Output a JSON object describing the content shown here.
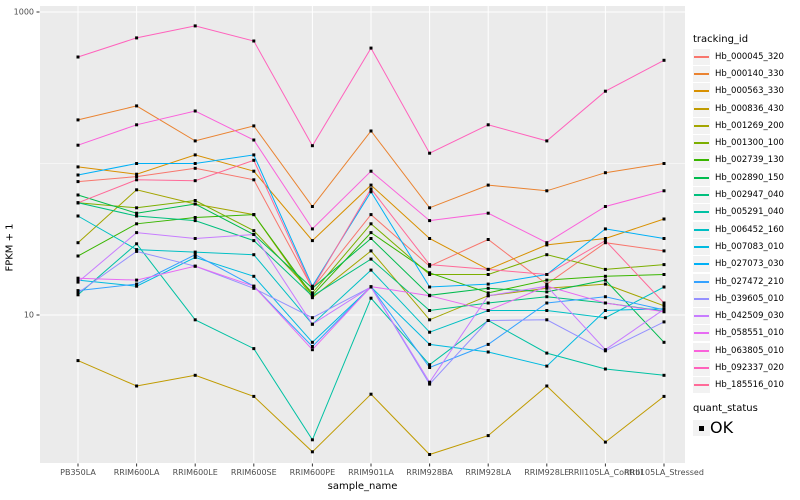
{
  "chart_data": {
    "type": "line",
    "title": "",
    "xlabel": "sample_name",
    "ylabel": "FPKM + 1",
    "y_scale": "log10",
    "ylim": [
      1,
      1000
    ],
    "y_tick_labels": [
      "1000",
      "10"
    ],
    "y_tick_values": [
      1000,
      10
    ],
    "y_minor_gridlines": [
      100
    ],
    "grid": true,
    "panel_bg": "#EBEBEB",
    "grid_color": "#FFFFFF",
    "tick_label_color": "#4D4D4D",
    "point_color": "#000000",
    "legend_position": "right",
    "x_categories": [
      "PB350LA",
      "RRIM600LA",
      "RRIM600LE",
      "RRIM600SE",
      "RRIM600PE",
      "RRIM901LA",
      "RRIM928BA",
      "RRIM928LA",
      "RRIM928LE",
      "RRII105LA_Control",
      "RRII105LA_Stressed"
    ],
    "series": [
      {
        "name": "Hb_000045_320",
        "color": "#F8766D",
        "values": [
          76,
          82,
          93,
          78,
          15,
          46,
          21,
          31.5,
          16,
          30,
          26.5
        ]
      },
      {
        "name": "Hb_000140_330",
        "color": "#EA8331",
        "values": [
          194,
          240,
          141,
          177,
          52,
          164,
          51,
          72,
          66,
          87,
          100
        ]
      },
      {
        "name": "Hb_000563_330",
        "color": "#D89000",
        "values": [
          95,
          85,
          114,
          89,
          31,
          72,
          32,
          20,
          29,
          32,
          43
        ]
      },
      {
        "name": "Hb_000836_430",
        "color": "#C09B00",
        "values": [
          5.0,
          3.4,
          4.0,
          2.9,
          1.25,
          3.0,
          1.2,
          1.6,
          3.4,
          1.45,
          2.9
        ]
      },
      {
        "name": "Hb_001269_200",
        "color": "#A3A500",
        "values": [
          30,
          67,
          54,
          46,
          13,
          26.5,
          9.3,
          13.4,
          15,
          16,
          11.5
        ]
      },
      {
        "name": "Hb_001300_100",
        "color": "#7CAE00",
        "values": [
          55,
          51,
          57,
          36,
          14,
          40,
          18.5,
          18.5,
          25,
          20,
          21.5
        ]
      },
      {
        "name": "Hb_002739_130",
        "color": "#39B600",
        "values": [
          24.5,
          40,
          44,
          46,
          13.5,
          35,
          19,
          14,
          17,
          18,
          18.5
        ]
      },
      {
        "name": "Hb_002890_150",
        "color": "#00BB4E",
        "values": [
          62,
          47,
          54,
          34,
          15,
          32,
          13.5,
          15,
          14.2,
          17,
          6.6
        ]
      },
      {
        "name": "Hb_002947_040",
        "color": "#00BF7D",
        "values": [
          55,
          45,
          42,
          31,
          13.3,
          23.4,
          10.7,
          12,
          13.2,
          12,
          10.6
        ]
      },
      {
        "name": "Hb_005291_040",
        "color": "#00C1A3",
        "values": [
          13.6,
          29.5,
          9.3,
          6,
          1.5,
          12.9,
          4.7,
          9.2,
          5.6,
          4.4,
          4.0
        ]
      },
      {
        "name": "Hb_006452_160",
        "color": "#00BFC4",
        "values": [
          45,
          27,
          26,
          25,
          8.7,
          19.8,
          7.7,
          10.7,
          10.7,
          9.6,
          15.3
        ]
      },
      {
        "name": "Hb_007083_010",
        "color": "#00BAE0",
        "values": [
          17,
          15.5,
          24,
          18,
          6.6,
          15.3,
          6.4,
          5.7,
          4.6,
          10.7,
          11
        ]
      },
      {
        "name": "Hb_027073_030",
        "color": "#00B0F6",
        "values": [
          84,
          100,
          100,
          114,
          15.5,
          65,
          15.3,
          16,
          18.5,
          37,
          32
        ]
      },
      {
        "name": "Hb_027472_210",
        "color": "#35A2FF",
        "values": [
          14.5,
          16,
          25,
          15.5,
          6.2,
          15.3,
          4.5,
          6.4,
          12,
          13.2,
          10.8
        ]
      },
      {
        "name": "Hb_039605_010",
        "color": "#9590FF",
        "values": [
          14,
          26.3,
          21,
          15,
          9.6,
          15.3,
          3.5,
          9.2,
          9.3,
          5.8,
          9.0
        ]
      },
      {
        "name": "Hb_042509_030",
        "color": "#C77CFF",
        "values": [
          16.5,
          35,
          32,
          34,
          8.7,
          15.3,
          3.6,
          13.4,
          15.5,
          5.9,
          10.9
        ]
      },
      {
        "name": "Hb_058551_010",
        "color": "#E76BF3",
        "values": [
          17.5,
          17,
          21,
          15.5,
          5.9,
          15.4,
          13.4,
          10.7,
          15.5,
          12,
          10.5
        ]
      },
      {
        "name": "Hb_063805_010",
        "color": "#FA62DB",
        "values": [
          132,
          180,
          222,
          143,
          37,
          89,
          42,
          47,
          30,
          52,
          66
        ]
      },
      {
        "name": "Hb_092337_020",
        "color": "#FF62BC",
        "values": [
          505,
          675,
          810,
          644,
          131,
          578,
          117,
          180,
          141,
          300,
          480
        ]
      },
      {
        "name": "Hb_185516_010",
        "color": "#FF6A98",
        "values": [
          55,
          78,
          77,
          105,
          15,
          68,
          21.5,
          20,
          18.5,
          31,
          12
        ]
      }
    ]
  },
  "legend": {
    "tracking_title": "tracking_id",
    "quant_title": "quant_status",
    "quant_value": "OK"
  }
}
